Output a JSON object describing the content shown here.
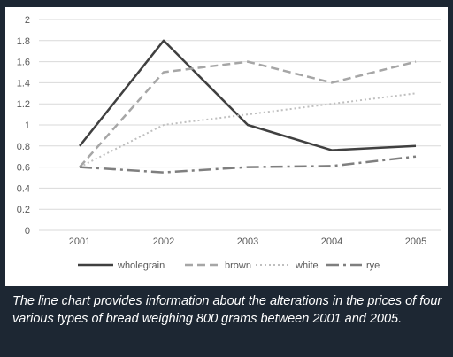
{
  "chart_data": {
    "type": "line",
    "title": "",
    "xlabel": "",
    "ylabel": "",
    "x": [
      "2001",
      "2002",
      "2003",
      "2004",
      "2005"
    ],
    "ylim": [
      0,
      2
    ],
    "yticks": [
      "0",
      "0.2",
      "0.4",
      "0.6",
      "0.8",
      "1",
      "1.2",
      "1.4",
      "1.6",
      "1.8",
      "2"
    ],
    "grid": "horizontal",
    "legend_position": "bottom",
    "series": [
      {
        "name": "wholegrain",
        "values": [
          0.8,
          1.8,
          1.0,
          0.76,
          0.8
        ],
        "color": "#404040",
        "style": "solid"
      },
      {
        "name": "brown",
        "values": [
          0.6,
          1.5,
          1.6,
          1.4,
          1.6
        ],
        "color": "#a6a6a6",
        "style": "dashed"
      },
      {
        "name": "white",
        "values": [
          0.6,
          1.0,
          1.1,
          1.2,
          1.3
        ],
        "color": "#bfbfbf",
        "style": "dotted"
      },
      {
        "name": "rye",
        "values": [
          0.6,
          0.55,
          0.6,
          0.61,
          0.7
        ],
        "color": "#7f7f7f",
        "style": "dashdot"
      }
    ]
  },
  "caption": "The line chart provides information about the alterations in the prices of four various types of bread weighing 800 grams between 2001 and 2005."
}
